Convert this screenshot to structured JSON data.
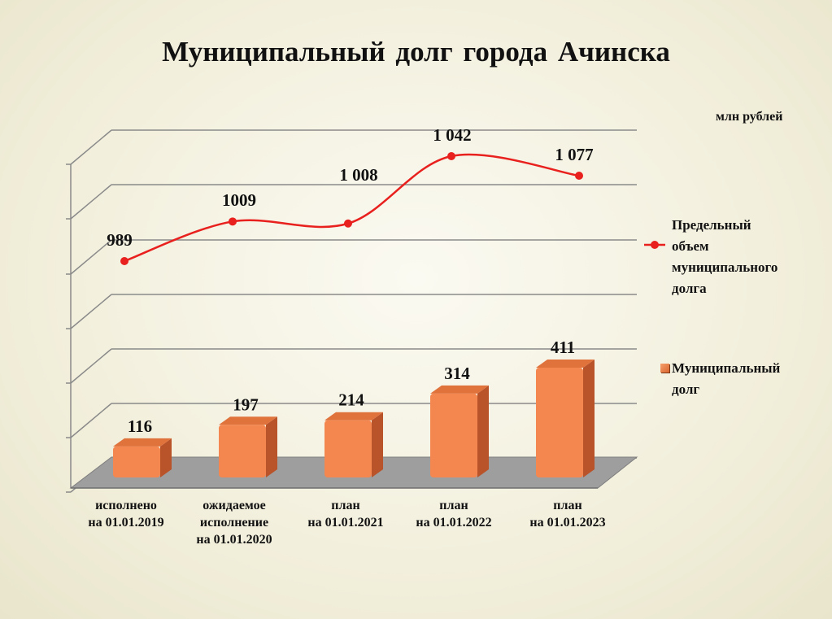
{
  "header": {
    "title": "Муниципальный  долг  города Ачинска",
    "units": "млн рублей"
  },
  "legend": {
    "line_label": "Предельный\nобъем\nмуниципального\nдолга",
    "bar_label": "Муниципальный\nдолг"
  },
  "colors": {
    "bar_front": "#f4874f",
    "bar_side": "#b9532a",
    "bar_top": "#e0723c",
    "line": "#e8201e",
    "floor": "#9e9e9e"
  },
  "chart_data": {
    "type": "bar",
    "categories": [
      "исполнено\nна 01.01.2019",
      "ожидаемое\nисполнение\nна 01.01.2020",
      "план\nна 01.01.2021",
      "план\nна 01.01.2022",
      "план\nна 01.01.2023"
    ],
    "series": [
      {
        "name": "Муниципальный долг",
        "type": "bar",
        "values": [
          116,
          197,
          214,
          314,
          411
        ],
        "labels": [
          "116",
          "197",
          "214",
          "314",
          "411"
        ]
      },
      {
        "name": "Предельный объем муниципального долга",
        "type": "line",
        "values": [
          989,
          1009,
          1008,
          1042,
          1077
        ],
        "labels": [
          "989",
          "1009",
          "1 008",
          "1 042",
          "1 077"
        ]
      }
    ],
    "title": "Муниципальный  долг  города Ачинска",
    "ylabel": "млн рублей",
    "grid": true,
    "legend_position": "right"
  }
}
